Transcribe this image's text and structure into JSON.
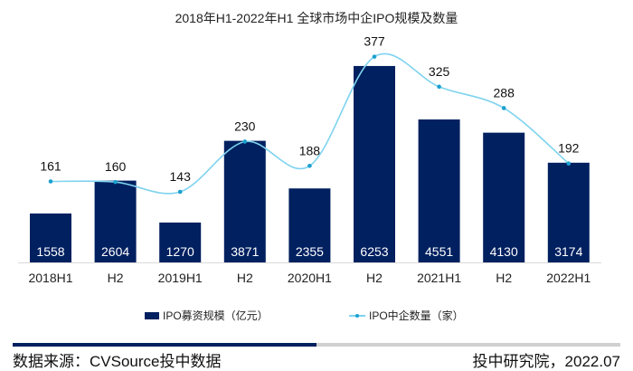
{
  "chart_data": {
    "type": "bar+line",
    "title": "2018年H1-2022年H1  全球市场中企IPO规模及数量",
    "categories": [
      "2018H1",
      "H2",
      "2019H1",
      "H2",
      "2020H1",
      "H2",
      "2021H1",
      "H2",
      "2022H1"
    ],
    "series": [
      {
        "name": "IPO募资规模（亿元）",
        "type": "bar",
        "axis": "primary",
        "color": "#002060",
        "values": [
          1558,
          2604,
          1270,
          3871,
          2355,
          6253,
          4551,
          4130,
          3174
        ]
      },
      {
        "name": "IPO中企数量（家）",
        "type": "line",
        "smooth": true,
        "axis": "secondary",
        "color": "#7fd3ef",
        "marker_color": "#1aa0d0",
        "values": [
          161,
          160,
          143,
          230,
          188,
          377,
          325,
          288,
          192
        ]
      }
    ],
    "ylim": [
      0,
      7000
    ],
    "y2lim": [
      -20,
      400
    ],
    "grid": false,
    "legend": "bottom"
  },
  "footer": {
    "source": "数据来源：CVSource投中数据",
    "credit": "投中研究院，2022.07",
    "progress": 0.5
  }
}
